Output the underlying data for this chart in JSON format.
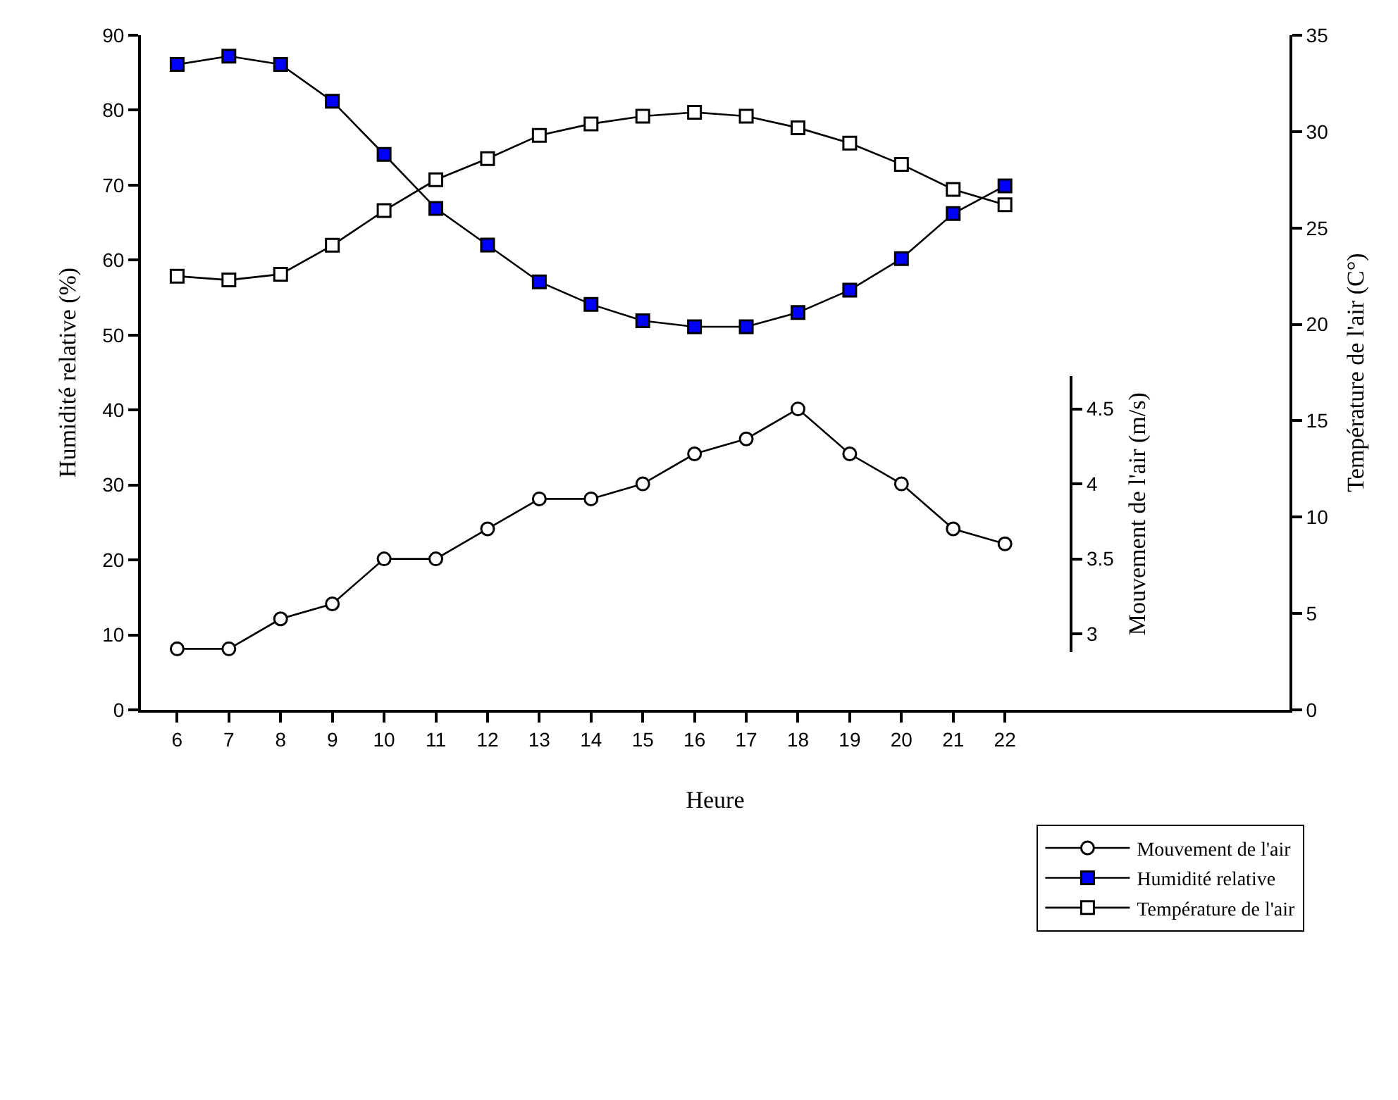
{
  "chart_data": {
    "type": "line",
    "xlabel": "Heure",
    "ylabel": "Humidité relative (%)",
    "y2label": "Température de l'air (C°)",
    "y3label": "Mouvement de l'air (m/s)",
    "x": [
      6,
      7,
      8,
      9,
      10,
      11,
      12,
      13,
      14,
      15,
      16,
      17,
      18,
      19,
      20,
      21,
      22
    ],
    "xlim": [
      5.3,
      27.5
    ],
    "xticks": [
      6,
      7,
      8,
      9,
      10,
      11,
      12,
      13,
      14,
      15,
      16,
      17,
      18,
      19,
      20,
      21,
      22
    ],
    "ylim": [
      0,
      90
    ],
    "yticks": [
      0,
      10,
      20,
      30,
      40,
      50,
      60,
      70,
      80,
      90
    ],
    "y2lim": [
      0,
      35
    ],
    "y2ticks": [
      0,
      5,
      10,
      15,
      20,
      25,
      30,
      35
    ],
    "y3lim": [
      2.88,
      4.72
    ],
    "y3ticks": [
      3,
      3.5,
      4,
      4.5
    ],
    "legend": "bottom right",
    "line_style": "solid",
    "series": [
      {
        "name": "Mouvement de l'air",
        "axis": "y3",
        "marker": "circle",
        "color": "#ffffff",
        "values": [
          2.9,
          2.9,
          3.1,
          3.2,
          3.5,
          3.5,
          3.7,
          3.9,
          3.9,
          4.0,
          4.2,
          4.3,
          4.5,
          4.2,
          4.0,
          3.7,
          3.6
        ]
      },
      {
        "name": "Humidité relative",
        "axis": "y",
        "marker": "square",
        "color": "#0000ff",
        "values": [
          86.1,
          87.2,
          86.1,
          81.2,
          74.1,
          66.9,
          62.0,
          57.1,
          54.1,
          51.9,
          51.1,
          51.1,
          53.0,
          56.0,
          60.2,
          66.2,
          69.9
        ]
      },
      {
        "name": "Température de l'air",
        "axis": "y2",
        "marker": "square",
        "color": "#ffffff",
        "values": [
          22.5,
          22.3,
          22.6,
          24.1,
          25.9,
          27.5,
          28.6,
          29.8,
          30.4,
          30.8,
          31.0,
          30.8,
          30.2,
          29.4,
          28.3,
          27.0,
          26.2
        ]
      }
    ]
  }
}
